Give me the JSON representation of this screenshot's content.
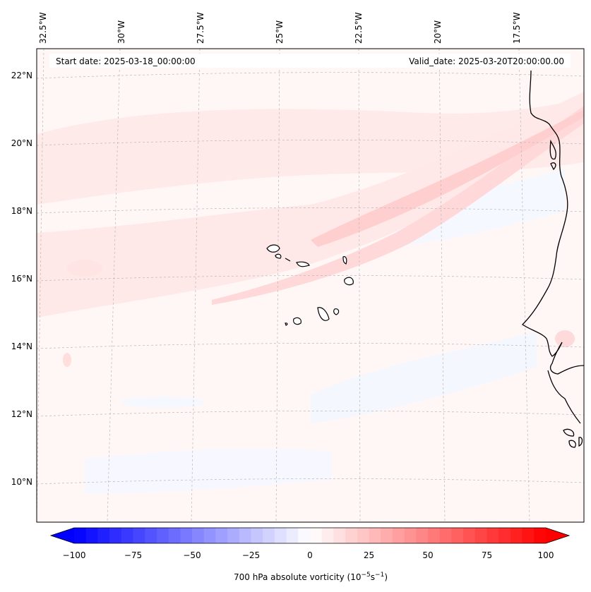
{
  "map": {
    "start_label": "Start date: 2025-03-18_00:00:00",
    "valid_label": "Valid_date: 2025-03-20T20:00:00.00",
    "lon_labels": [
      "32.5°W",
      "30°W",
      "27.5°W",
      "25°W",
      "22.5°W",
      "20°W",
      "17.5°W"
    ],
    "lat_labels": [
      "22°N",
      "20°N",
      "18°N",
      "16°N",
      "14°N",
      "12°N",
      "10°N"
    ],
    "gridlines": true
  },
  "colorbar": {
    "title": "700 hPa absolute vorticity (10",
    "title_exp1": "−5",
    "title_mid": "s",
    "title_exp2": "−1",
    "title_end": ")",
    "min": -100,
    "max": 100,
    "ticks": [
      "−100",
      "−75",
      "−50",
      "−25",
      "0",
      "25",
      "50",
      "75",
      "100"
    ],
    "colormap": "bwr",
    "low_color": "#0000ff",
    "mid_color": "#ffffff",
    "high_color": "#ff0000",
    "extend": "both"
  }
}
